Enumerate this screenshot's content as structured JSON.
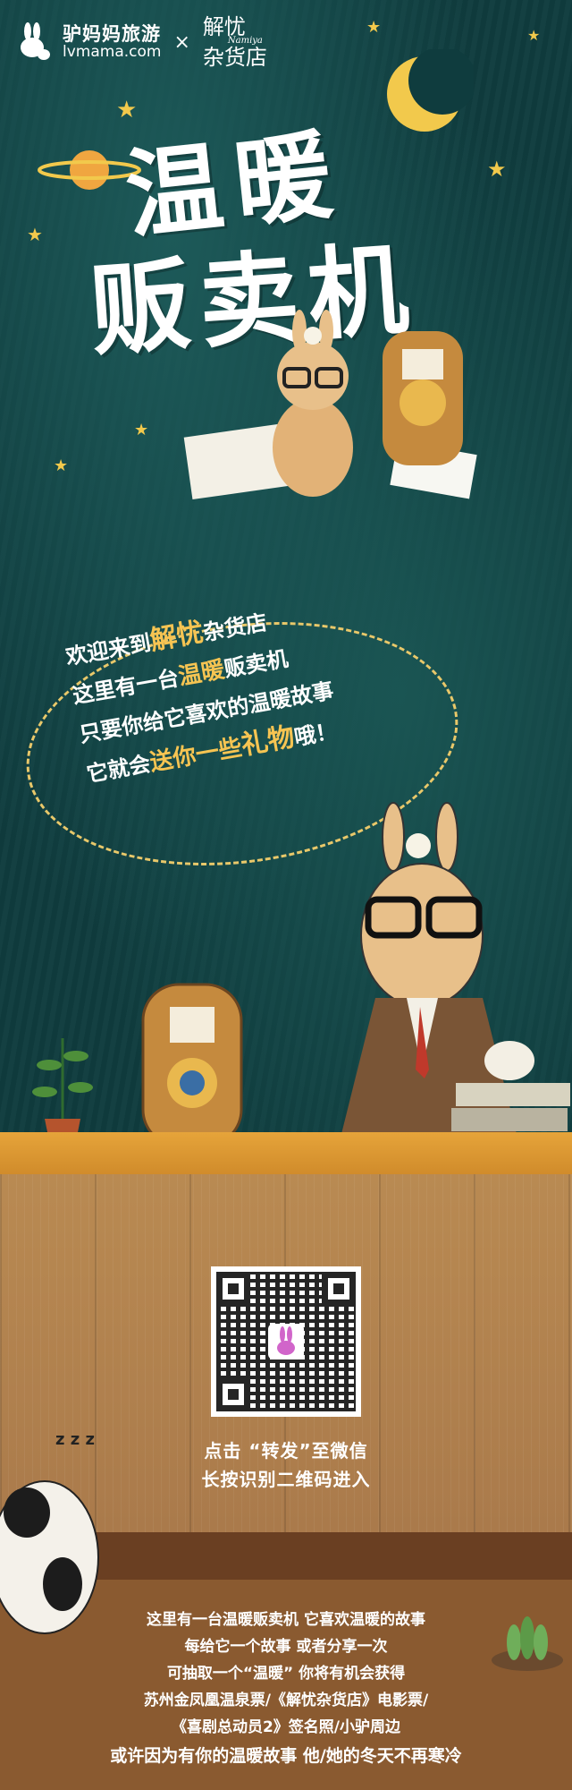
{
  "header": {
    "brand_cn": "驴妈妈旅游",
    "brand_en": "lvmama.com",
    "separator": "×",
    "partner_line1": "解忧",
    "partner_line2": "杂货店",
    "partner_en": "Namiya"
  },
  "title": {
    "line1": "温暖",
    "line2": "贩卖机"
  },
  "bubble": {
    "l1_a": "欢迎来到",
    "l1_b": "解忧",
    "l1_c": "杂货店",
    "l2_a": "这里有一台",
    "l2_b": "温暖",
    "l2_c": "贩卖机",
    "l3": "只要你给它喜欢的温暖故事",
    "l4_a": "它就会",
    "l4_b": "送你一些",
    "l4_c": "礼物",
    "l4_d": "哦！"
  },
  "scan": {
    "line1": "点击 “转发”至微信",
    "line2": "长按识别二维码进入"
  },
  "sleep": "z z z",
  "description": [
    "这里有一台温暖贩卖机  它喜欢温暖的故事",
    "每给它一个故事  或者分享一次",
    "可抽取一个“温暖”  你将有机会获得",
    "苏州金凤凰温泉票/《解忧杂货店》电影票/",
    "《喜剧总动员2》签名照/小驴周边",
    "或许因为有你的温暖故事  他/她的冬天不再寒冷"
  ],
  "colors": {
    "night": "#0f3c3e",
    "gold": "#f6c452",
    "wood": "#b98a52"
  }
}
